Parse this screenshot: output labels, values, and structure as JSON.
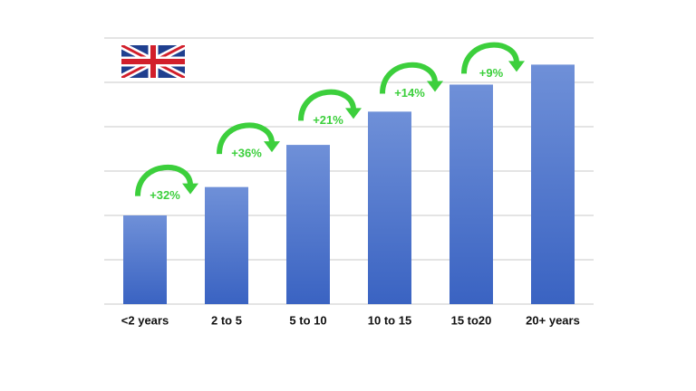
{
  "chart_data": {
    "type": "bar",
    "categories": [
      "<2 years",
      "2 to 5",
      "5 to 10",
      "10 to 15",
      "15 to20",
      "20+ years"
    ],
    "values": [
      2,
      2.64,
      3.59,
      4.34,
      4.95,
      5.4
    ],
    "color": "#4a72c8",
    "ylim": [
      0,
      6
    ],
    "gridlines": [
      0,
      1,
      2,
      3,
      4,
      5,
      6
    ],
    "growth_labels": [
      "+32%",
      "+36%",
      "+21%",
      "+14%",
      "+9%"
    ],
    "annotation_color": "#3ccf3c"
  }
}
